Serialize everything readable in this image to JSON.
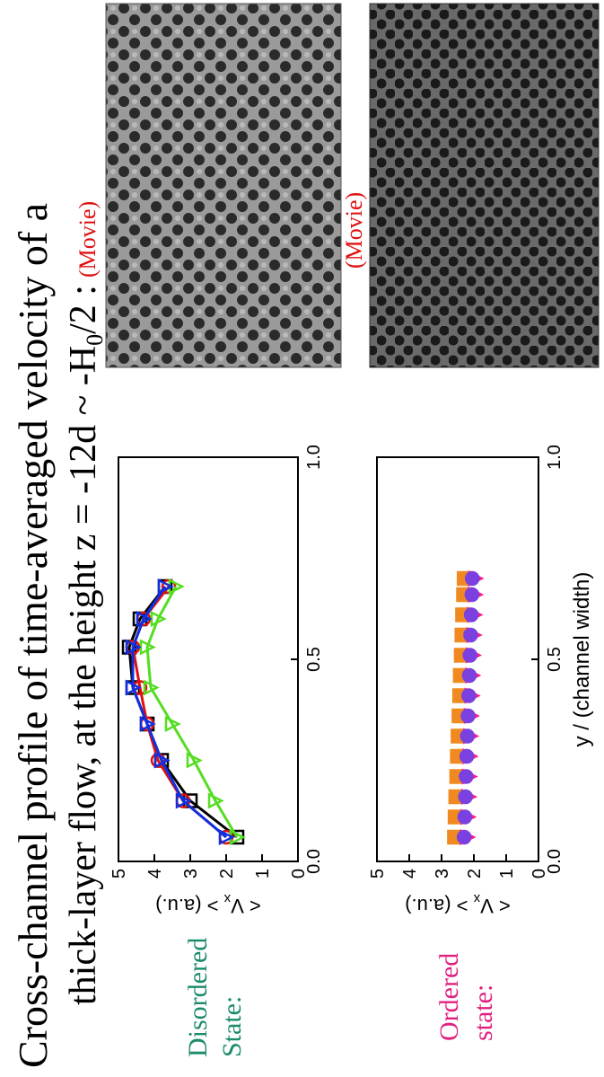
{
  "title": {
    "line1": "Cross-channel profile of time-averaged velocity of a",
    "line2": "thick-layer flow,   at the height z = -12d ~ -H",
    "line2_sub": "0",
    "line2_end": "/2 :",
    "movie": "(Movie)"
  },
  "labels": {
    "disordered": [
      "Disordered",
      "State:"
    ],
    "ordered": [
      "Ordered",
      "state:"
    ],
    "movie2": "(Movie)"
  },
  "chart_data": [
    {
      "type": "line",
      "lines": true,
      "ylabel": "< V",
      "ylabel_sub": "x",
      "ylabel_end": " >  (a.u.)",
      "xlim": [
        0,
        1
      ],
      "xticks": [
        {
          "value": 0,
          "label": "0.0"
        },
        {
          "value": 0.5,
          "label": "0.5"
        },
        {
          "value": 1,
          "label": "1.0"
        }
      ],
      "ylim": [
        0,
        5
      ],
      "yticks": [
        0,
        1,
        2,
        3,
        4,
        5
      ],
      "x": [
        0.06,
        0.15,
        0.25,
        0.34,
        0.43,
        0.53,
        0.6,
        0.68
      ],
      "series": [
        {
          "color": "#000000",
          "marker": "square",
          "values": [
            1.7,
            3.0,
            3.8,
            4.2,
            4.6,
            4.7,
            4.4,
            3.7
          ]
        },
        {
          "color": "#e01010",
          "marker": "circle",
          "values": [
            2.0,
            3.2,
            3.9,
            4.2,
            4.4,
            4.6,
            4.3,
            3.6
          ]
        },
        {
          "color": "#55dd22",
          "marker": "triangle",
          "values": [
            1.7,
            2.3,
            2.9,
            3.5,
            4.1,
            4.2,
            3.9,
            3.4
          ]
        },
        {
          "color": "#1030e0",
          "marker": "triangle",
          "values": [
            2.0,
            3.2,
            3.8,
            4.2,
            4.6,
            4.6,
            4.3,
            3.7
          ]
        }
      ]
    },
    {
      "type": "line",
      "lines": false,
      "ylabel": "< V",
      "ylabel_sub": "x",
      "ylabel_end": " >  (a.u.)",
      "xlabel": "y / (channel width)",
      "xlim": [
        0,
        1
      ],
      "xticks": [
        {
          "value": 0,
          "label": "0.0"
        },
        {
          "value": 0.5,
          "label": "0.5"
        },
        {
          "value": 1,
          "label": "1.0"
        }
      ],
      "ylim": [
        0,
        5
      ],
      "yticks": [
        0,
        1,
        2,
        3,
        4,
        5
      ],
      "x": [
        0.06,
        0.11,
        0.16,
        0.21,
        0.26,
        0.31,
        0.36,
        0.41,
        0.46,
        0.51,
        0.56,
        0.61,
        0.66,
        0.7
      ],
      "series": [
        {
          "color": "#f08a20",
          "marker": "square-filled",
          "values": [
            2.6,
            2.58,
            2.56,
            2.53,
            2.51,
            2.49,
            2.46,
            2.44,
            2.42,
            2.39,
            2.37,
            2.35,
            2.32,
            2.3
          ]
        },
        {
          "color": "#ff1a8c",
          "marker": "triangle-filled",
          "values": [
            2.2,
            2.18,
            2.16,
            2.14,
            2.12,
            2.1,
            2.08,
            2.06,
            2.04,
            2.02,
            2.0,
            1.98,
            1.96,
            1.95
          ]
        },
        {
          "color": "#7a40e0",
          "marker": "circle-filled",
          "values": [
            2.3,
            2.28,
            2.26,
            2.24,
            2.22,
            2.2,
            2.18,
            2.16,
            2.14,
            2.12,
            2.1,
            2.08,
            2.06,
            2.05
          ]
        }
      ]
    }
  ]
}
